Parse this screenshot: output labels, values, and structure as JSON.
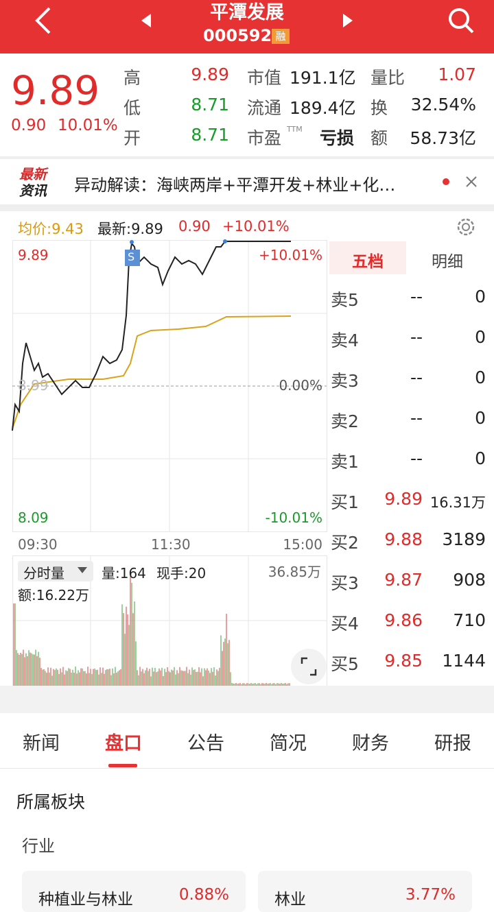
{
  "header": {
    "title": "平潭发展",
    "code": "000592",
    "badge": "融"
  },
  "quote": {
    "price": "9.89",
    "change": "0.90",
    "pct": "10.01%",
    "stats": [
      [
        "高",
        "9.89",
        "市值",
        "191.1亿",
        "量比",
        "1.07"
      ],
      [
        "低",
        "8.71",
        "流通",
        "189.4亿",
        "换",
        "32.54%"
      ],
      [
        "开",
        "8.71",
        "市盈",
        "亏损",
        "额",
        "58.73亿"
      ]
    ],
    "ttm": "TTM"
  },
  "news": {
    "logo_top": "最新",
    "logo_bottom": "资讯",
    "text": "异动解读：海峡两岸+平潭开发+林业+化…"
  },
  "chart": {
    "avg": "均价:9.43",
    "latest": "最新:9.89",
    "change": "0.90",
    "pct": "+10.01%",
    "top_price": "9.89",
    "top_pct": "+10.01%",
    "mid_price": "8.99",
    "mid_pct": "0.00%",
    "bottom_price": "8.09",
    "bottom_pct": "-10.01%",
    "times": [
      "09:30",
      "11:30",
      "15:00"
    ],
    "marker": "S",
    "volume_label": "分时量",
    "volume": "量:164",
    "hand": "现手:20",
    "max_volume": "36.85万",
    "amount": "额:16.22万"
  },
  "book": {
    "tabs": [
      "五档",
      "明细"
    ],
    "sell": [
      [
        "卖5",
        "--",
        "0"
      ],
      [
        "卖4",
        "--",
        "0"
      ],
      [
        "卖3",
        "--",
        "0"
      ],
      [
        "卖2",
        "--",
        "0"
      ],
      [
        "卖1",
        "--",
        "0"
      ]
    ],
    "buy": [
      [
        "买1",
        "9.89",
        "16.31万"
      ],
      [
        "买2",
        "9.88",
        "3189"
      ],
      [
        "买3",
        "9.87",
        "908"
      ],
      [
        "买4",
        "9.86",
        "710"
      ],
      [
        "买5",
        "9.85",
        "1144"
      ]
    ]
  },
  "tabs": [
    "新闻",
    "盘口",
    "公告",
    "简况",
    "财务",
    "研报"
  ],
  "section": {
    "title": "所属板块",
    "subtitle": "行业",
    "cards": [
      {
        "name": "种植业与林业",
        "pct": "0.88%"
      },
      {
        "name": "林业",
        "pct": "3.77%"
      }
    ]
  }
}
